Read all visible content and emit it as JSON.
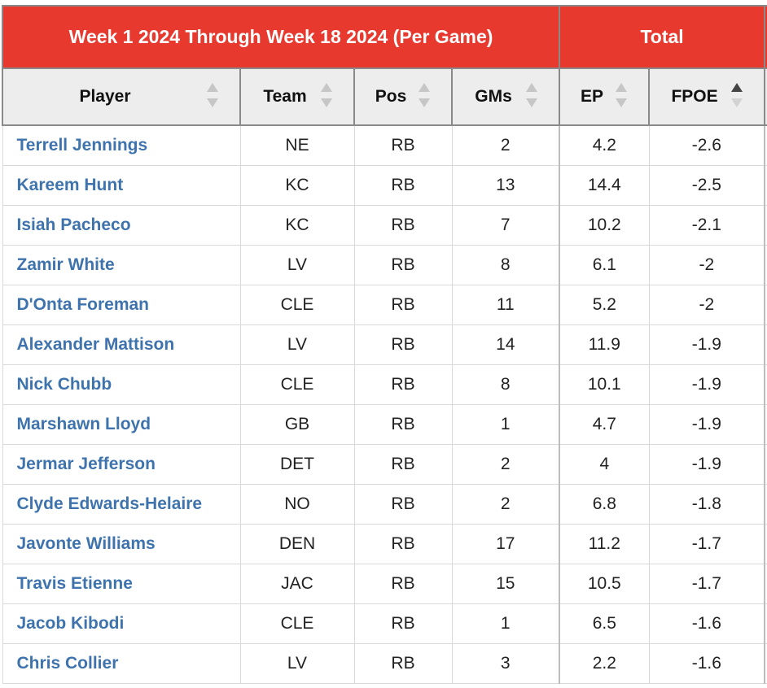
{
  "header": {
    "range_label": "Week 1 2024 Through Week 18 2024 (Per Game)",
    "total_label": "Total"
  },
  "columns": [
    {
      "key": "player",
      "label": "Player",
      "sort": "none"
    },
    {
      "key": "team",
      "label": "Team",
      "sort": "none"
    },
    {
      "key": "pos",
      "label": "Pos",
      "sort": "none"
    },
    {
      "key": "gms",
      "label": "GMs",
      "sort": "none"
    },
    {
      "key": "ep",
      "label": "EP",
      "sort": "none"
    },
    {
      "key": "fpoe",
      "label": "FPOE",
      "sort": "ascending"
    }
  ],
  "rows": [
    {
      "player": "Terrell Jennings",
      "team": "NE",
      "pos": "RB",
      "gms": "2",
      "ep": "4.2",
      "fpoe": "-2.6"
    },
    {
      "player": "Kareem Hunt",
      "team": "KC",
      "pos": "RB",
      "gms": "13",
      "ep": "14.4",
      "fpoe": "-2.5"
    },
    {
      "player": "Isiah Pacheco",
      "team": "KC",
      "pos": "RB",
      "gms": "7",
      "ep": "10.2",
      "fpoe": "-2.1"
    },
    {
      "player": "Zamir White",
      "team": "LV",
      "pos": "RB",
      "gms": "8",
      "ep": "6.1",
      "fpoe": "-2"
    },
    {
      "player": "D'Onta Foreman",
      "team": "CLE",
      "pos": "RB",
      "gms": "11",
      "ep": "5.2",
      "fpoe": "-2"
    },
    {
      "player": "Alexander Mattison",
      "team": "LV",
      "pos": "RB",
      "gms": "14",
      "ep": "11.9",
      "fpoe": "-1.9"
    },
    {
      "player": "Nick Chubb",
      "team": "CLE",
      "pos": "RB",
      "gms": "8",
      "ep": "10.1",
      "fpoe": "-1.9"
    },
    {
      "player": "Marshawn Lloyd",
      "team": "GB",
      "pos": "RB",
      "gms": "1",
      "ep": "4.7",
      "fpoe": "-1.9"
    },
    {
      "player": "Jermar Jefferson",
      "team": "DET",
      "pos": "RB",
      "gms": "2",
      "ep": "4",
      "fpoe": "-1.9"
    },
    {
      "player": "Clyde Edwards-Helaire",
      "team": "NO",
      "pos": "RB",
      "gms": "2",
      "ep": "6.8",
      "fpoe": "-1.8"
    },
    {
      "player": "Javonte Williams",
      "team": "DEN",
      "pos": "RB",
      "gms": "17",
      "ep": "11.2",
      "fpoe": "-1.7"
    },
    {
      "player": "Travis Etienne",
      "team": "JAC",
      "pos": "RB",
      "gms": "15",
      "ep": "10.5",
      "fpoe": "-1.7"
    },
    {
      "player": "Jacob Kibodi",
      "team": "CLE",
      "pos": "RB",
      "gms": "1",
      "ep": "6.5",
      "fpoe": "-1.6"
    },
    {
      "player": "Chris Collier",
      "team": "LV",
      "pos": "RB",
      "gms": "3",
      "ep": "2.2",
      "fpoe": "-1.6"
    }
  ],
  "colors": {
    "header_red": "#e8392f",
    "link_blue": "#3e73ad",
    "header_gray": "#ededed"
  }
}
